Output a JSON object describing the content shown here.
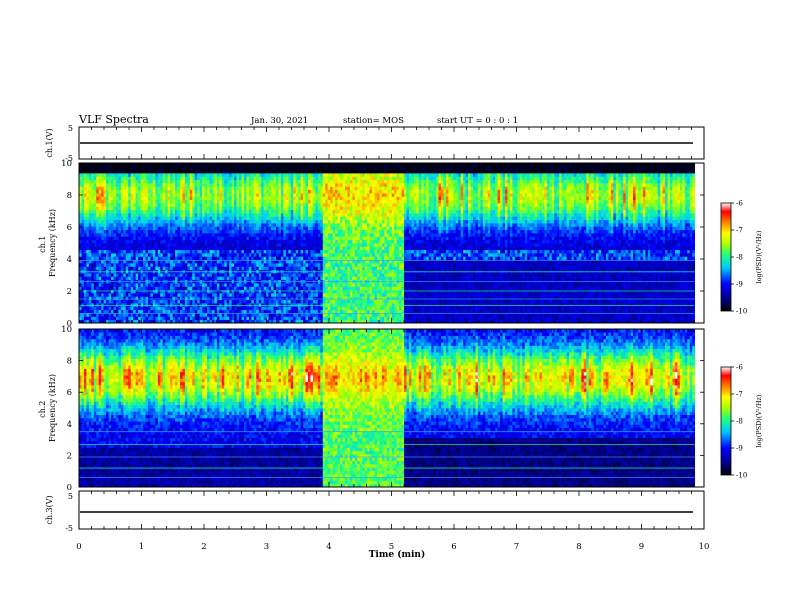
{
  "header": {
    "title": "VLF Spectra",
    "date": "Jan. 30, 2021",
    "station": "station= MOS",
    "start": "start  UT =   0 : 0  : 1"
  },
  "chart_data": [
    {
      "type": "line",
      "panel": "ch1-waveform",
      "ylabel": "ch.1(V)",
      "ylim": [
        -5,
        5
      ],
      "yticks": [
        "5",
        "-5"
      ],
      "series": [
        {
          "x": [
            0,
            9.85
          ],
          "y": [
            0,
            0
          ]
        }
      ]
    },
    {
      "type": "heatmap",
      "panel": "ch1-spectrogram",
      "ylabel": "ch.1\nFrequency (kHz)",
      "ylim": [
        0,
        10
      ],
      "yticks": [
        "0",
        "2",
        "4",
        "6",
        "8",
        "10"
      ],
      "xlim": [
        0,
        10
      ],
      "data_end_min": 9.85,
      "colorbar": {
        "label": "log(PSD)(V²/Hz)",
        "range": [
          -10,
          -6
        ],
        "ticks": [
          "-6",
          "-7",
          "-8",
          "-9",
          "-10"
        ]
      }
    },
    {
      "type": "heatmap",
      "panel": "ch2-spectrogram",
      "ylabel": "ch.2\nFrequency (kHz)",
      "ylim": [
        0,
        10
      ],
      "yticks": [
        "0",
        "2",
        "4",
        "6",
        "8",
        "10"
      ],
      "xlim": [
        0,
        10
      ],
      "data_end_min": 9.85,
      "colorbar": {
        "label": "log(PSD)(V²/Hz)",
        "range": [
          -10,
          -6
        ],
        "ticks": [
          "-6",
          "-7",
          "-8",
          "-9",
          "-10"
        ]
      }
    },
    {
      "type": "line",
      "panel": "ch3-waveform",
      "ylabel": "ch.3(V)",
      "ylim": [
        -5,
        5
      ],
      "yticks": [
        "5",
        "-5"
      ],
      "series": [
        {
          "x": [
            0,
            9.85
          ],
          "y": [
            0,
            0
          ]
        }
      ]
    }
  ],
  "xaxis": {
    "label": "Time  (min)",
    "ticks": [
      "0",
      "1",
      "2",
      "3",
      "4",
      "5",
      "6",
      "7",
      "8",
      "9",
      "10"
    ],
    "range": [
      0,
      10
    ]
  }
}
